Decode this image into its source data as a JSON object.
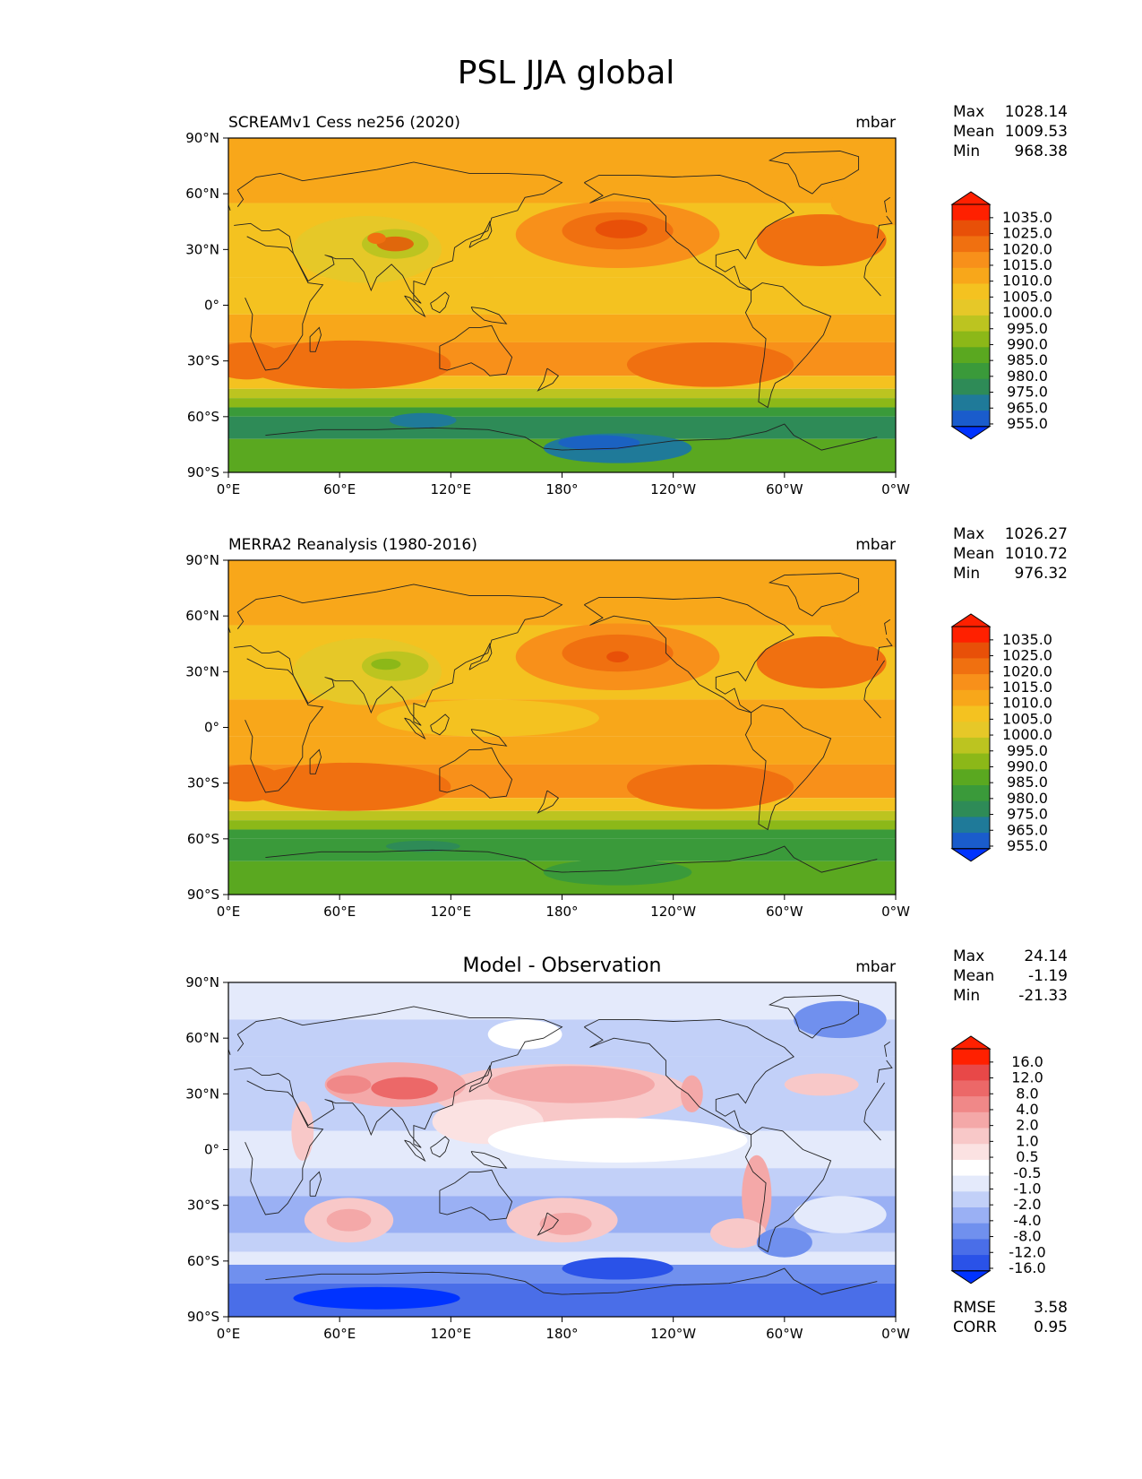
{
  "title": "PSL JJA global",
  "units": "mbar",
  "x_ticks": [
    "0°E",
    "60°E",
    "120°E",
    "180°",
    "120°W",
    "60°W",
    "0°W"
  ],
  "y_ticks": [
    "90°N",
    "60°N",
    "30°N",
    "0°",
    "30°S",
    "60°S",
    "90°S"
  ],
  "colors": {
    "abs_levels": [
      "#0033ff",
      "#1a5ccc",
      "#1f7a99",
      "#2e8b57",
      "#3a9a3a",
      "#5aa820",
      "#8cb818",
      "#bcc420",
      "#e6c828",
      "#f4c220",
      "#f8a71a",
      "#f8901a",
      "#f07010",
      "#e85008",
      "#ff2000"
    ],
    "diff_levels": [
      "#0033ff",
      "#2a52e8",
      "#4a6ee8",
      "#7090ee",
      "#9ab0f4",
      "#c2d0f8",
      "#e4eafb",
      "#ffffff",
      "#fbe2e2",
      "#f8c8c8",
      "#f4a8a8",
      "#f08888",
      "#ec6868",
      "#e84848",
      "#ff2000"
    ],
    "coast": "#222222"
  },
  "chart_data": [
    {
      "type": "heatmap",
      "title": "SCREAMv1 Cess ne256 (2020)",
      "units": "mbar",
      "stats": {
        "max_label": "Max",
        "max": "1028.14",
        "mean_label": "Mean",
        "mean": "1009.53",
        "min_label": "Min",
        "min": "968.38"
      },
      "colorbar_labels": [
        "1035.0",
        "1025.0",
        "1020.0",
        "1015.0",
        "1010.0",
        "1005.0",
        "1000.0",
        "995.0",
        "990.0",
        "985.0",
        "980.0",
        "975.0",
        "965.0",
        "955.0"
      ],
      "variant": "model"
    },
    {
      "type": "heatmap",
      "title": "MERRA2 Reanalysis (1980-2016)",
      "units": "mbar",
      "stats": {
        "max_label": "Max",
        "max": "1026.27",
        "mean_label": "Mean",
        "mean": "1010.72",
        "min_label": "Min",
        "min": "976.32"
      },
      "colorbar_labels": [
        "1035.0",
        "1025.0",
        "1020.0",
        "1015.0",
        "1010.0",
        "1005.0",
        "1000.0",
        "995.0",
        "990.0",
        "985.0",
        "980.0",
        "975.0",
        "965.0",
        "955.0"
      ],
      "variant": "obs"
    },
    {
      "type": "heatmap",
      "title": "Model - Observation",
      "units": "mbar",
      "stats": {
        "max_label": "Max",
        "max": "24.14",
        "mean_label": "Mean",
        "mean": "-1.19",
        "min_label": "Min",
        "min": "-21.33"
      },
      "colorbar_labels": [
        "16.0",
        "12.0",
        "8.0",
        "4.0",
        "2.0",
        "1.0",
        "0.5",
        "-0.5",
        "-1.0",
        "-2.0",
        "-4.0",
        "-8.0",
        "-12.0",
        "-16.0"
      ],
      "variant": "diff",
      "rmse_label": "RMSE",
      "rmse": "3.58",
      "corr_label": "CORR",
      "corr": "0.95"
    }
  ]
}
